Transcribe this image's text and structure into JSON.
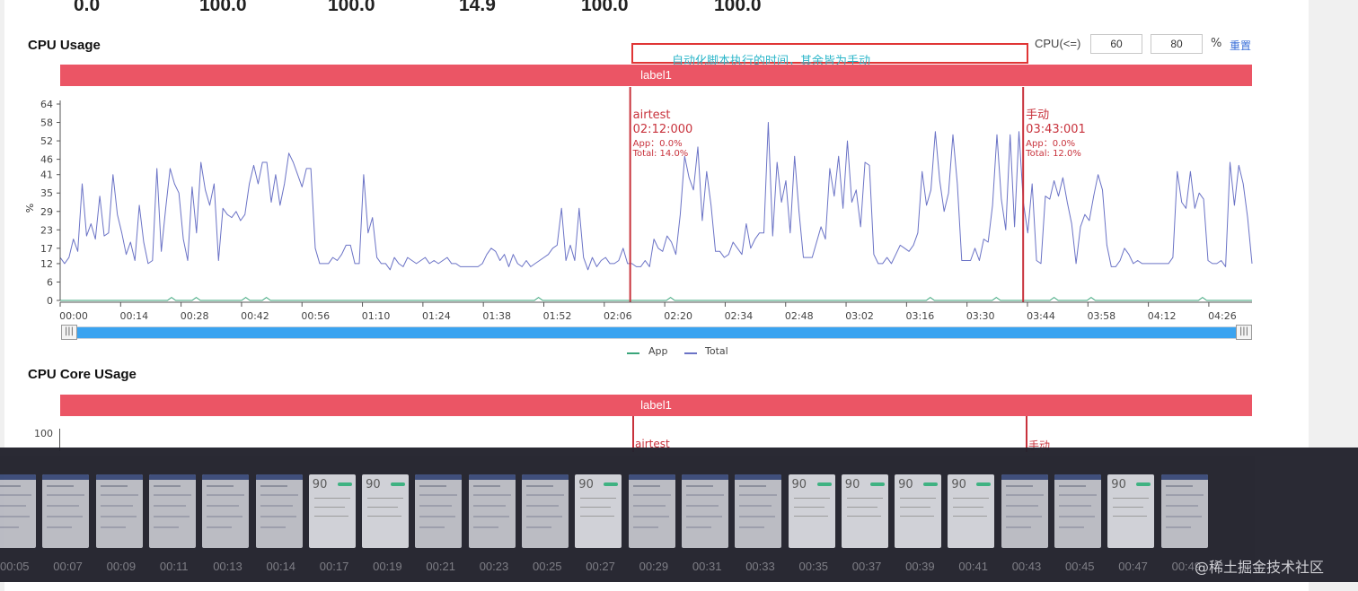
{
  "stats": [
    "0.0",
    "100.0",
    "100.0",
    "14.9",
    "100.0",
    "100.0"
  ],
  "cpu_usage": {
    "title": "CPU Usage",
    "annotation_text": "自动化脚本执行的时间，其余皆为手动",
    "cpu_filter": {
      "label": "CPU(<=)",
      "min": "60",
      "max": "80",
      "unit": "%",
      "reset": "重置"
    },
    "label_bar": "label1",
    "y_axis_label": "%"
  },
  "cpu_core_usage": {
    "title": "CPU Core USage",
    "label_bar": "label1",
    "y_tick_top": "100",
    "markers": [
      "airtest",
      "手动"
    ]
  },
  "chart_data": [
    {
      "type": "line",
      "title": "CPU Usage",
      "ylabel": "%",
      "ylim": [
        0,
        64
      ],
      "yticks": [
        "64",
        "58",
        "52",
        "46",
        "41",
        "35",
        "29",
        "23",
        "17",
        "12",
        "6",
        "0"
      ],
      "xticks": [
        "00:00",
        "00:14",
        "00:28",
        "00:42",
        "00:56",
        "01:10",
        "01:24",
        "01:38",
        "01:52",
        "02:06",
        "02:20",
        "02:34",
        "02:48",
        "03:02",
        "03:16",
        "03:30",
        "03:44",
        "03:58",
        "04:12",
        "04:26"
      ],
      "xlim_seconds": [
        0,
        276
      ],
      "legend": [
        "App",
        "Total"
      ],
      "legend_position": "bottom-center",
      "colors": {
        "App": "#3aa57a",
        "Total": "#6b73c6",
        "marker": "#c8323c",
        "label_bar": "#eb5565",
        "slider": "#3aa3f0"
      },
      "markers": [
        {
          "name": "airtest",
          "time": "02:12:000",
          "app": "App：0.0%",
          "total": "Total: 14.0%",
          "t": 132
        },
        {
          "name": "手动",
          "time": "03:43:001",
          "app": "App：0.0%",
          "total": "Total: 12.0%",
          "t": 223
        }
      ],
      "series": [
        {
          "name": "Total",
          "values": [
            14,
            12,
            14,
            20,
            16,
            38,
            21,
            25,
            20,
            34,
            21,
            22,
            41,
            28,
            22,
            15,
            19,
            13,
            31,
            19,
            12,
            13,
            43,
            16,
            30,
            43,
            38,
            35,
            20,
            13,
            37,
            22,
            45,
            36,
            31,
            38,
            13,
            30,
            28,
            27,
            29,
            26,
            28,
            38,
            44,
            38,
            45,
            45,
            32,
            41,
            31,
            38,
            48,
            45,
            41,
            37,
            43,
            43,
            17,
            12,
            12,
            12,
            14,
            13,
            15,
            18,
            18,
            12,
            12,
            41,
            22,
            27,
            14,
            12,
            12,
            10,
            14,
            12,
            11,
            14,
            13,
            12,
            13,
            14,
            12,
            13,
            12,
            13,
            14,
            12,
            12,
            11,
            11,
            11,
            11,
            11,
            12,
            15,
            17,
            16,
            13,
            15,
            11,
            15,
            12,
            11,
            13,
            11,
            12,
            13,
            14,
            15,
            17,
            18,
            30,
            13,
            18,
            13,
            30,
            14,
            10,
            14,
            11,
            13,
            14,
            12,
            12,
            13,
            17,
            12,
            12,
            11,
            11,
            13,
            11,
            20,
            17,
            16,
            21,
            19,
            15,
            28,
            47,
            40,
            36,
            50,
            26,
            42,
            31,
            16,
            16,
            14,
            15,
            19,
            17,
            15,
            25,
            17,
            20,
            22,
            22,
            58,
            21,
            45,
            32,
            39,
            22,
            47,
            29,
            14,
            14,
            14,
            19,
            24,
            20,
            43,
            34,
            47,
            30,
            52,
            32,
            36,
            24,
            45,
            44,
            15,
            12,
            12,
            14,
            12,
            15,
            18,
            17,
            16,
            18,
            22,
            42,
            31,
            36,
            55,
            39,
            29,
            35,
            54,
            38,
            13,
            13,
            13,
            17,
            13,
            20,
            19,
            31,
            54,
            33,
            23,
            54,
            24,
            55,
            32,
            22,
            38,
            13,
            12,
            34,
            33,
            39,
            34,
            40,
            32,
            25,
            12,
            24,
            28,
            26,
            34,
            41,
            36,
            18,
            11,
            11,
            13,
            17,
            15,
            12,
            13,
            12,
            12,
            12,
            12,
            12,
            12,
            12,
            14,
            42,
            32,
            30,
            42,
            30,
            35,
            33,
            13,
            12,
            12,
            13,
            11,
            45,
            31,
            44,
            38,
            27,
            12
          ]
        },
        {
          "name": "App",
          "values": [
            0,
            0,
            0,
            0,
            0,
            0,
            0,
            0,
            0,
            0,
            0,
            0,
            0,
            0,
            0,
            0,
            0,
            0,
            0,
            0,
            0,
            0,
            0,
            0,
            0,
            0,
            0,
            1,
            0,
            0,
            0,
            0,
            0,
            1,
            0,
            0,
            0,
            0,
            0,
            0,
            0,
            0,
            0,
            0,
            0,
            1,
            0,
            0,
            0,
            0,
            1,
            0,
            0,
            0,
            0,
            0,
            0,
            0,
            0,
            0,
            0,
            0,
            0,
            0,
            0,
            0,
            0,
            0,
            0,
            0,
            0,
            0,
            0,
            0,
            0,
            0,
            0,
            0,
            0,
            0,
            0,
            0,
            0,
            0,
            0,
            0,
            0,
            0,
            0,
            0,
            0,
            0,
            0,
            0,
            0,
            0,
            0,
            0,
            0,
            0,
            0,
            0,
            0,
            0,
            0,
            0,
            0,
            0,
            0,
            0,
            0,
            0,
            0,
            0,
            0,
            0,
            1,
            0,
            0,
            0,
            0,
            0,
            0,
            0,
            0,
            0,
            0,
            0,
            0,
            0,
            0,
            0,
            0,
            0,
            0,
            0,
            0,
            0,
            0,
            0,
            0,
            0,
            0,
            0,
            0,
            0,
            0,
            0,
            1,
            0,
            0,
            0,
            0,
            0,
            0,
            0,
            0,
            0,
            0,
            0,
            0,
            0,
            0,
            0,
            0,
            0,
            0,
            0,
            0,
            0,
            0,
            0,
            0,
            0,
            0,
            0,
            0,
            0,
            0,
            0,
            0,
            0,
            0,
            0,
            0,
            0,
            0,
            0,
            0,
            0,
            0,
            0,
            0,
            0,
            0,
            0,
            0,
            0,
            0,
            0,
            0,
            0,
            0,
            0,
            0,
            0,
            0,
            0,
            0,
            0,
            0,
            1,
            0,
            0,
            0,
            0,
            0,
            0,
            0,
            0,
            0,
            0,
            0,
            0,
            0,
            0,
            0,
            1,
            0,
            0,
            0,
            0,
            0,
            0,
            0,
            0,
            0,
            0,
            0,
            0,
            0,
            1,
            0,
            0,
            0,
            0,
            0,
            0,
            0,
            0,
            1,
            0,
            0,
            0,
            0,
            0,
            0,
            0,
            0,
            0,
            0,
            0,
            0,
            0,
            0,
            0,
            0,
            0,
            0,
            0,
            0,
            0,
            0,
            0,
            0,
            0,
            0,
            1,
            0,
            0,
            0,
            0,
            0,
            0,
            0,
            0,
            0,
            0,
            0,
            0
          ]
        }
      ]
    }
  ],
  "filmstrip": {
    "times": [
      "00:05",
      "00:07",
      "00:09",
      "00:11",
      "00:13",
      "00:14",
      "00:17",
      "00:19",
      "00:21",
      "00:23",
      "00:25",
      "00:27",
      "00:29",
      "00:31",
      "00:33",
      "00:35",
      "00:37",
      "00:39",
      "00:41",
      "00:43",
      "00:45",
      "00:47",
      "00:49"
    ],
    "thumb_badge": "90"
  },
  "watermark": "@稀土掘金技术社区"
}
